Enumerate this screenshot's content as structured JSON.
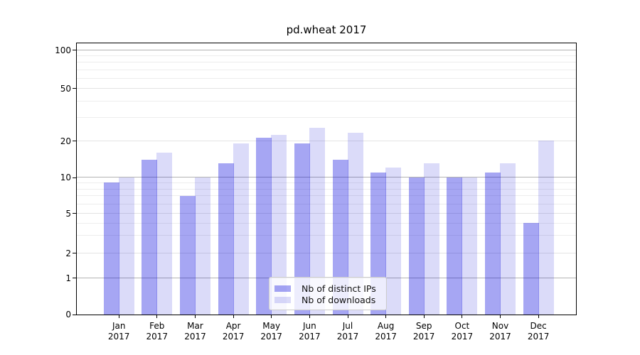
{
  "chart_data": {
    "type": "bar",
    "title": "pd.wheat 2017",
    "categories": [
      "Jan",
      "Feb",
      "Mar",
      "Apr",
      "May",
      "Jun",
      "Jul",
      "Aug",
      "Sep",
      "Oct",
      "Nov",
      "Dec"
    ],
    "x_sub_label": "2017",
    "series": [
      {
        "name": "Nb of distinct IPs",
        "color": "#a5a5f1",
        "color_rgba": "rgba(0,0,220,0.35)",
        "values": [
          9,
          14,
          7,
          13,
          21,
          19,
          14,
          11,
          10,
          10,
          11,
          4
        ]
      },
      {
        "name": "Nb of downloads",
        "color": "#dbdbf9",
        "color_rgba": "rgba(0,0,215,0.14)",
        "values": [
          10,
          16,
          10,
          19,
          22,
          25,
          23,
          12,
          13,
          10,
          13,
          20
        ]
      }
    ],
    "y_axis": {
      "scale": "symlog",
      "tick_values": [
        0,
        1,
        2,
        5,
        10,
        20,
        50,
        100
      ],
      "tick_labels": [
        "0",
        "1",
        "2",
        "5",
        "10",
        "20",
        "50",
        "100"
      ],
      "major_grid_values": [
        1,
        10,
        100
      ],
      "minor_grid_values": [
        3,
        4,
        6,
        7,
        8,
        9,
        30,
        40,
        60,
        70,
        80,
        90
      ]
    },
    "grid": "horizontal major+minor",
    "legend_position": "lower center"
  }
}
